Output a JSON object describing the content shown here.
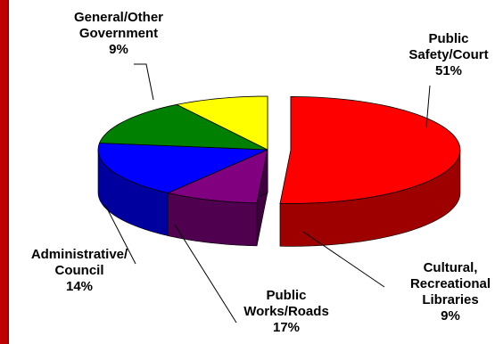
{
  "chart_data": {
    "type": "pie",
    "style": "3d-exploded",
    "slices": [
      {
        "key": "public_safety",
        "label_lines": [
          "Public",
          "Safety/Court",
          "51%"
        ],
        "value": 51,
        "color": "#ff0000",
        "exploded": true
      },
      {
        "key": "cultural",
        "label_lines": [
          "Cultural,",
          "Recreational",
          "Libraries",
          "9%"
        ],
        "value": 9,
        "color": "#800080",
        "exploded": false
      },
      {
        "key": "public_works",
        "label_lines": [
          "Public",
          "Works/Roads",
          "17%"
        ],
        "value": 17,
        "color": "#0000ff",
        "exploded": false
      },
      {
        "key": "administrative",
        "label_lines": [
          "Administrative/",
          "Council",
          "14%"
        ],
        "value": 14,
        "color": "#008000",
        "exploded": false
      },
      {
        "key": "general",
        "label_lines": [
          "General/Other",
          "Government",
          "9%"
        ],
        "value": 9,
        "color": "#ffff00",
        "exploded": false
      }
    ],
    "legend": "none",
    "frame_color": "#c00000"
  }
}
